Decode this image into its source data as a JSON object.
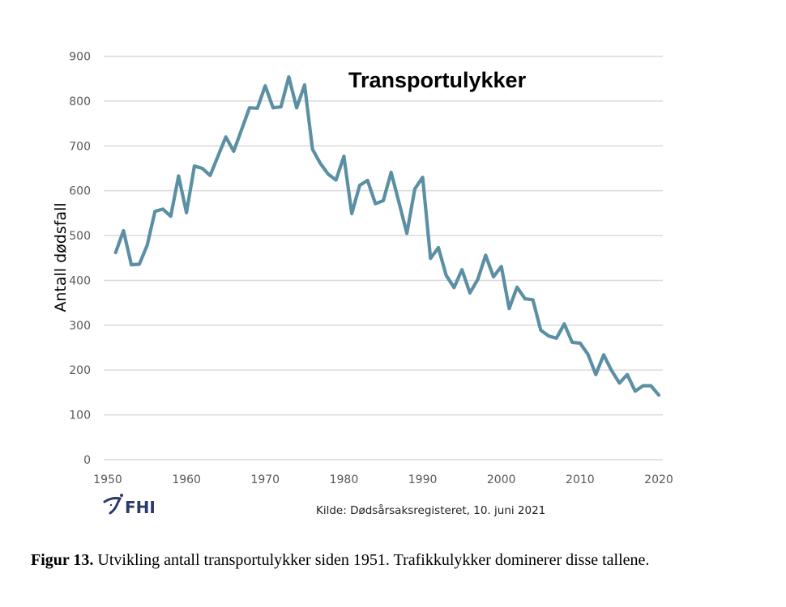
{
  "chart_data": {
    "type": "line",
    "title": "Transportulykker",
    "xlabel": "",
    "ylabel": "Antall dødsfall",
    "xlim": [
      1950,
      2020
    ],
    "ylim": [
      0,
      900
    ],
    "x_ticks": [
      1950,
      1960,
      1970,
      1980,
      1990,
      2000,
      2010,
      2020
    ],
    "y_ticks": [
      0,
      100,
      200,
      300,
      400,
      500,
      600,
      700,
      800,
      900
    ],
    "grid": "horizontal",
    "legend": "none",
    "series": [
      {
        "name": "Transportulykker",
        "color": "#5b8fa3",
        "x": [
          1951,
          1952,
          1953,
          1954,
          1955,
          1956,
          1957,
          1958,
          1959,
          1960,
          1961,
          1962,
          1963,
          1964,
          1965,
          1966,
          1967,
          1968,
          1969,
          1970,
          1971,
          1972,
          1973,
          1974,
          1975,
          1976,
          1977,
          1978,
          1979,
          1980,
          1981,
          1982,
          1983,
          1984,
          1985,
          1986,
          1987,
          1988,
          1989,
          1990,
          1991,
          1992,
          1993,
          1994,
          1995,
          1996,
          1997,
          1998,
          1999,
          2000,
          2001,
          2002,
          2003,
          2004,
          2005,
          2006,
          2007,
          2008,
          2009,
          2010,
          2011,
          2012,
          2013,
          2014,
          2015,
          2016,
          2017,
          2018,
          2019,
          2020
        ],
        "values": [
          462,
          511,
          435,
          436,
          478,
          554,
          559,
          543,
          633,
          551,
          655,
          650,
          634,
          677,
          720,
          688,
          736,
          785,
          784,
          834,
          785,
          787,
          854,
          785,
          836,
          693,
          661,
          637,
          624,
          677,
          549,
          612,
          623,
          571,
          578,
          641,
          574,
          505,
          604,
          630,
          449,
          473,
          411,
          384,
          424,
          372,
          402,
          456,
          408,
          431,
          337,
          385,
          359,
          357,
          289,
          276,
          271,
          303,
          262,
          260,
          235,
          190,
          234,
          199,
          171,
          190,
          153,
          165,
          165,
          144
        ]
      }
    ]
  },
  "source": "Kilde: Dødsårsaksregisteret, 10. juni 2021",
  "logo": {
    "text": "FHI",
    "icon": "fhi-logo-icon"
  },
  "caption": {
    "label": "Figur 13.",
    "text": " Utvikling antall transportulykker siden 1951. Trafikkulykker dominerer disse tallene."
  }
}
